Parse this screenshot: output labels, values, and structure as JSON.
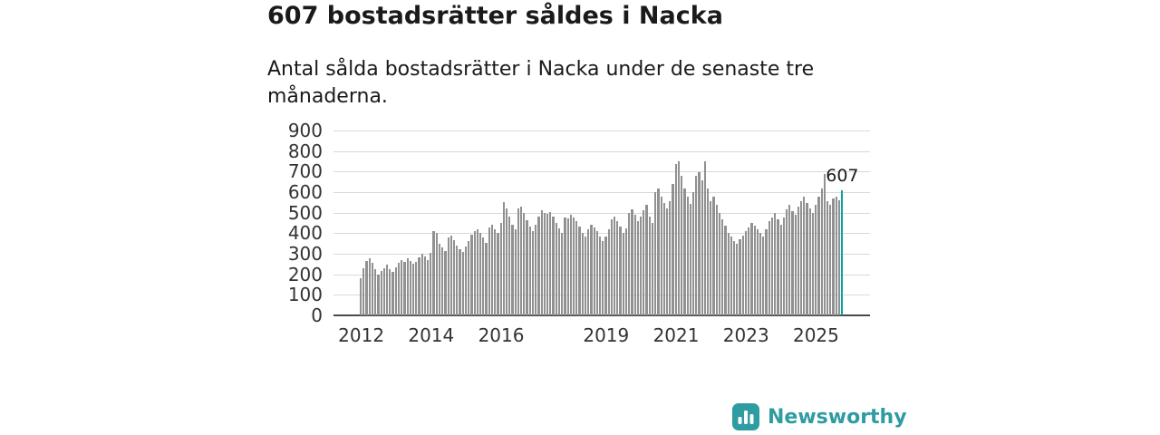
{
  "header": {
    "title": "607 bostadsrätter såldes i Nacka",
    "subtitle": "Antal sålda bostadsrätter i Nacka under de senaste tre månaderna."
  },
  "branding": {
    "name": "Newsworthy"
  },
  "colors": {
    "bar": "#919191",
    "highlight": "#0aa2a4",
    "grid": "#d9d9d9",
    "axis": "#4a4a4a",
    "text": "#1a1a1a",
    "tick_text": "#333333",
    "brand": "#2e9ca1"
  },
  "chart_data": {
    "type": "bar",
    "title": "607 bostadsrätter såldes i Nacka",
    "subtitle": "Antal sålda bostadsrätter i Nacka under de senaste tre månaderna.",
    "xlabel": "",
    "ylabel": "",
    "ylim": [
      0,
      900
    ],
    "y_ticks": [
      0,
      100,
      200,
      300,
      400,
      500,
      600,
      700,
      800,
      900
    ],
    "grid": true,
    "legend": "none",
    "x_unit": "month",
    "x_start_year": 2012,
    "x_ticks": [
      {
        "label": "2012",
        "month": 0
      },
      {
        "label": "2014",
        "month": 24
      },
      {
        "label": "2016",
        "month": 48
      },
      {
        "label": "2019",
        "month": 84
      },
      {
        "label": "2021",
        "month": 108
      },
      {
        "label": "2023",
        "month": 132
      },
      {
        "label": "2025",
        "month": 156
      }
    ],
    "values": [
      180,
      230,
      265,
      280,
      255,
      225,
      200,
      215,
      230,
      245,
      225,
      210,
      235,
      255,
      270,
      260,
      280,
      265,
      250,
      262,
      282,
      300,
      288,
      270,
      305,
      410,
      400,
      350,
      330,
      312,
      380,
      390,
      368,
      340,
      322,
      310,
      335,
      362,
      392,
      412,
      420,
      400,
      378,
      352,
      430,
      440,
      418,
      400,
      450,
      550,
      520,
      480,
      440,
      420,
      520,
      528,
      498,
      462,
      432,
      412,
      442,
      480,
      510,
      500,
      492,
      502,
      480,
      452,
      422,
      402,
      478,
      470,
      490,
      478,
      460,
      432,
      402,
      382,
      420,
      440,
      430,
      410,
      382,
      362,
      382,
      420,
      468,
      480,
      458,
      432,
      402,
      422,
      498,
      518,
      490,
      460,
      480,
      510,
      538,
      482,
      452,
      598,
      618,
      578,
      548,
      522,
      558,
      638,
      738,
      748,
      678,
      618,
      578,
      542,
      598,
      678,
      698,
      658,
      748,
      618,
      558,
      578,
      538,
      498,
      468,
      438,
      402,
      382,
      362,
      350,
      370,
      390,
      410,
      430,
      450,
      438,
      420,
      400,
      382,
      420,
      458,
      478,
      498,
      468,
      440,
      478,
      518,
      538,
      508,
      490,
      528,
      558,
      578,
      548,
      520,
      500,
      538,
      578,
      618,
      688,
      558,
      540,
      568,
      578,
      560,
      607
    ],
    "highlight_last": true,
    "highlight_last_value": 607,
    "annotation": "607"
  }
}
